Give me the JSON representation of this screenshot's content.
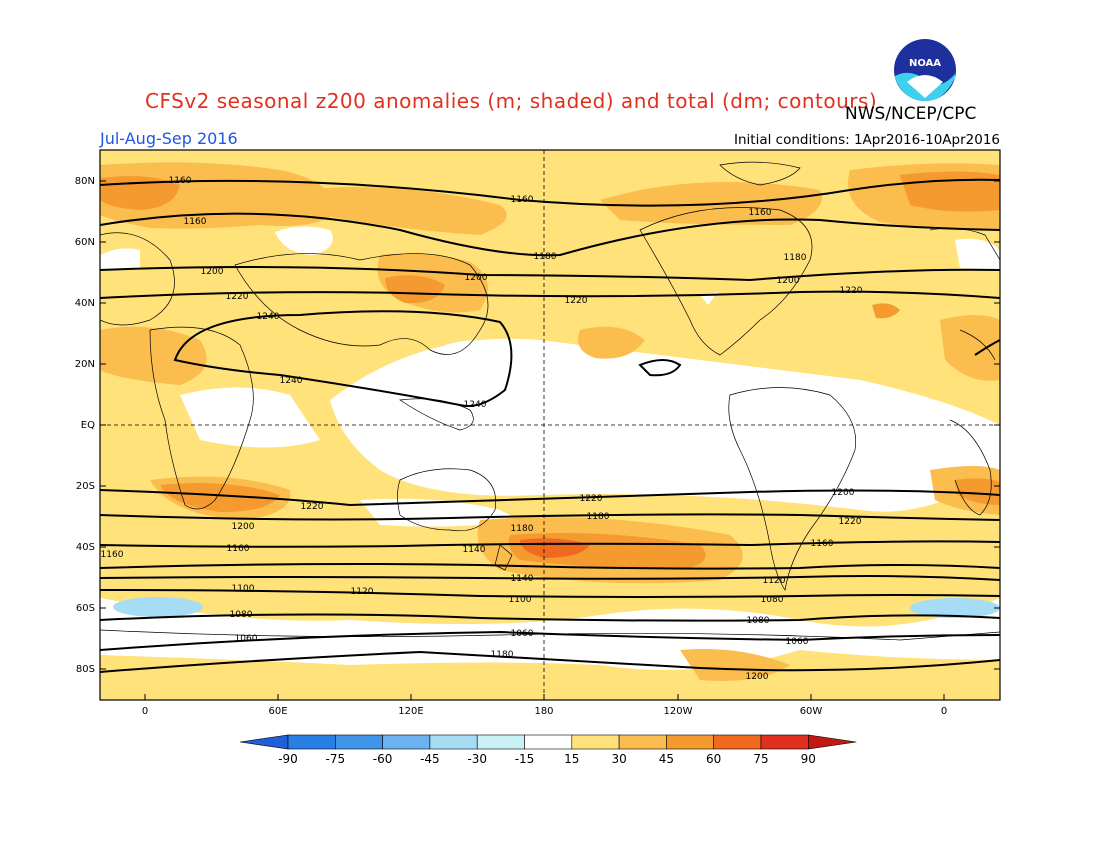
{
  "header": {
    "title": "CFSv2 seasonal z200 anomalies (m; shaded) and total (dm; contours)",
    "agency": "NWS/NCEP/CPC",
    "season": "Jul-Aug-Sep 2016",
    "initial_conditions": "Initial conditions: 1Apr2016-10Apr2016",
    "logo_text": "NOAA"
  },
  "axes": {
    "lat_labels": [
      "80N",
      "60N",
      "40N",
      "20N",
      "EQ",
      "20S",
      "40S",
      "60S",
      "80S"
    ],
    "lon_labels": [
      "0",
      "60E",
      "120E",
      "180",
      "120W",
      "60W",
      "0"
    ]
  },
  "colorbar": {
    "labels": [
      "-90",
      "-75",
      "-60",
      "-45",
      "-30",
      "-15",
      "15",
      "30",
      "45",
      "60",
      "75",
      "90"
    ],
    "colors": [
      "#1f5fd8",
      "#2a7fe6",
      "#3f95ea",
      "#6bb3f0",
      "#a6dcf4",
      "#c9f2f7",
      "#ffffff",
      "#ffe27a",
      "#fbbd4d",
      "#f49a2f",
      "#ef6a1f",
      "#e0301e",
      "#c21a12"
    ]
  },
  "contours": {
    "labels": [
      "1160",
      "1160",
      "1160",
      "1160",
      "1180",
      "1180",
      "1200",
      "1200",
      "1200",
      "1220",
      "1220",
      "1220",
      "1240",
      "1240",
      "1240",
      "1220",
      "1220",
      "1200",
      "1200",
      "1180",
      "1160",
      "1160",
      "1180",
      "1160",
      "1140",
      "1140",
      "1120",
      "1100",
      "1120",
      "1100",
      "1080",
      "1080",
      "1080",
      "1060",
      "1060",
      "1060",
      "1180",
      "1200",
      "1220"
    ]
  }
}
